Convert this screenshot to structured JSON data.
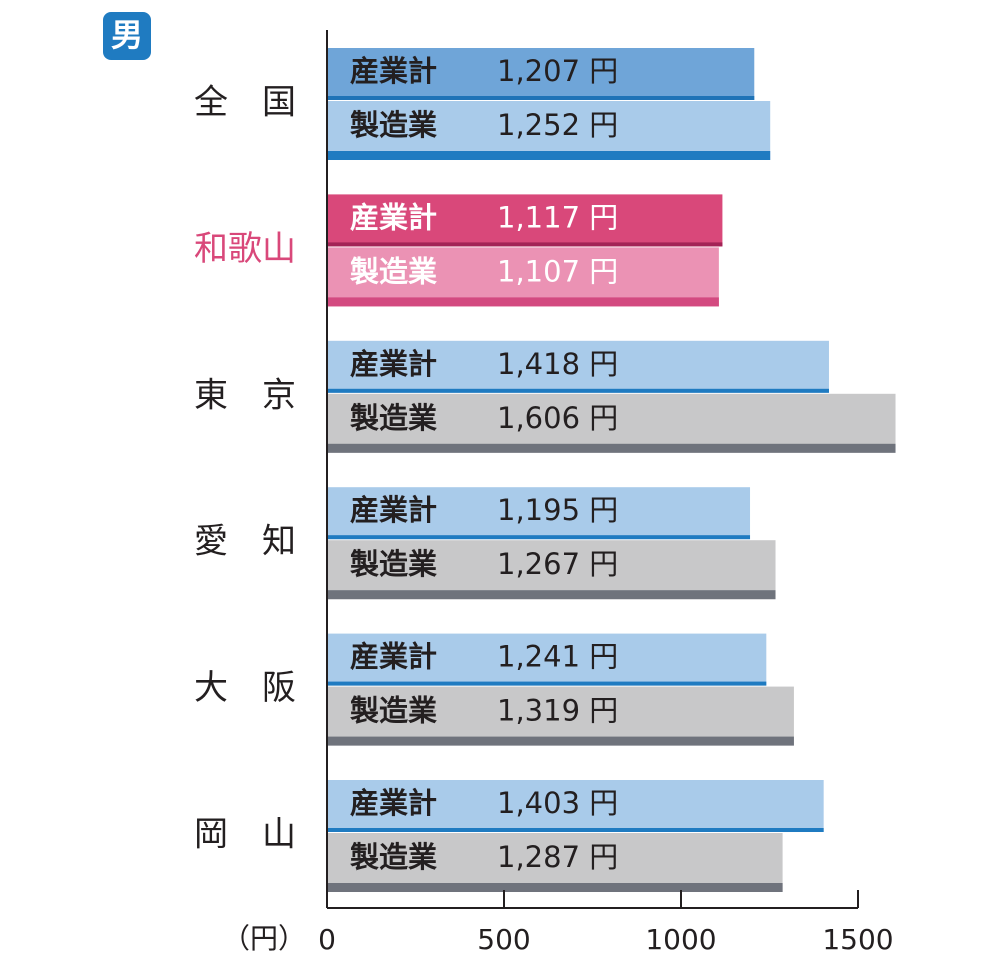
{
  "chart_data": {
    "type": "hbar",
    "badge": "男",
    "categories": [
      "全　国",
      "和歌山",
      "東　京",
      "愛　知",
      "大　阪",
      "岡　山"
    ],
    "category_colors": [
      "#231f20",
      "#d9487a",
      "#231f20",
      "#231f20",
      "#231f20",
      "#231f20"
    ],
    "bar_text_colors": [
      "#231f20",
      "#ffffff",
      "#231f20",
      "#231f20",
      "#231f20",
      "#231f20"
    ],
    "series": [
      {
        "name": "産業計",
        "values": [
          1207,
          1117,
          1418,
          1195,
          1241,
          1403
        ],
        "value_labels": [
          "1,207 円",
          "1,117 円",
          "1,418 円",
          "1,195 円",
          "1,241 円",
          "1,403 円"
        ],
        "colors": [
          "#6fa5d8",
          "#d9487a",
          "#a9cbea",
          "#a9cbea",
          "#a9cbea",
          "#a9cbea"
        ],
        "edge_colors": [
          "#1f73b7",
          "#a32356",
          "#1f7bc1",
          "#1f7bc1",
          "#1f7bc1",
          "#1f7bc1"
        ]
      },
      {
        "name": "製造業",
        "values": [
          1252,
          1107,
          1606,
          1267,
          1319,
          1287
        ],
        "value_labels": [
          "1,252 円",
          "1,107 円",
          "1,606 円",
          "1,267 円",
          "1,319 円",
          "1,287 円"
        ],
        "colors": [
          "#a9cbea",
          "#eb92b4",
          "#c8c8c9",
          "#c8c8c9",
          "#c8c8c9",
          "#c8c8c9"
        ],
        "edge_colors": [
          "#1f7bc1",
          "#d34a80",
          "#6f737c",
          "#6f737c",
          "#6f737c",
          "#6f737c"
        ]
      }
    ],
    "xlabel": "（円）",
    "xlim": [
      0,
      1500
    ],
    "xticks": [
      0,
      500,
      1000,
      1500
    ]
  }
}
